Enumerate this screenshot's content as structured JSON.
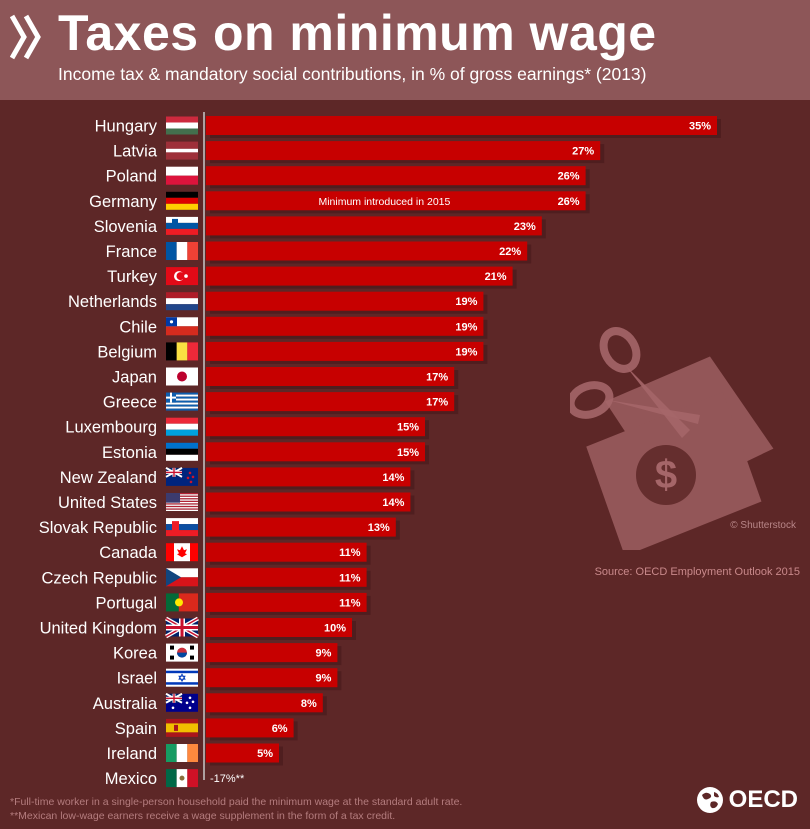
{
  "header": {
    "title": "Taxes on minimum wage",
    "subtitle": "Income tax & mandatory social contributions, in % of gross earnings* (2013)"
  },
  "source": "Source: OECD Employment Outlook 2015",
  "watermark": "© Shutterstock",
  "notes": [
    "*Full-time worker in a single-person household paid the minimum wage at the standard adult rate.",
    "**Mexican low-wage earners receive a wage supplement in the form of a tax credit."
  ],
  "logo": {
    "text": "OECD"
  },
  "colors": {
    "bar": "#c70000",
    "background": "#5d2727",
    "header": "#8d5658"
  },
  "chart_data": {
    "type": "bar",
    "orientation": "horizontal",
    "unit": "%",
    "categories": [
      "Hungary",
      "Latvia",
      "Poland",
      "Germany",
      "Slovenia",
      "France",
      "Turkey",
      "Netherlands",
      "Chile",
      "Belgium",
      "Japan",
      "Greece",
      "Luxembourg",
      "Estonia",
      "New Zealand",
      "United States",
      "Slovak Republic",
      "Canada",
      "Czech Republic",
      "Portugal",
      "United Kingdom",
      "Korea",
      "Israel",
      "Australia",
      "Spain",
      "Ireland",
      "Mexico"
    ],
    "values": [
      35,
      27,
      26,
      26,
      23,
      22,
      21,
      19,
      19,
      19,
      17,
      17,
      15,
      15,
      14,
      14,
      13,
      11,
      11,
      11,
      10,
      9,
      9,
      8,
      6,
      5,
      -17
    ],
    "data_labels": [
      "35%",
      "27%",
      "26%",
      "26%",
      "23%",
      "22%",
      "21%",
      "19%",
      "19%",
      "19%",
      "17%",
      "17%",
      "15%",
      "15%",
      "14%",
      "14%",
      "13%",
      "11%",
      "11%",
      "11%",
      "10%",
      "9%",
      "9%",
      "8%",
      "6%",
      "5%",
      "-17%**"
    ],
    "annotations": [
      {
        "category": "Germany",
        "text": "Minimum introduced in 2015"
      }
    ],
    "flags": [
      "hungary-flag-icon",
      "latvia-flag-icon",
      "poland-flag-icon",
      "germany-flag-icon",
      "slovenia-flag-icon",
      "france-flag-icon",
      "turkey-flag-icon",
      "netherlands-flag-icon",
      "chile-flag-icon",
      "belgium-flag-icon",
      "japan-flag-icon",
      "greece-flag-icon",
      "luxembourg-flag-icon",
      "estonia-flag-icon",
      "new-zealand-flag-icon",
      "united-states-flag-icon",
      "slovak-republic-flag-icon",
      "canada-flag-icon",
      "czech-republic-flag-icon",
      "portugal-flag-icon",
      "united-kingdom-flag-icon",
      "korea-flag-icon",
      "israel-flag-icon",
      "australia-flag-icon",
      "spain-flag-icon",
      "ireland-flag-icon",
      "mexico-flag-icon"
    ],
    "xlim": [
      0,
      35
    ],
    "grid": false,
    "legend": "none"
  }
}
